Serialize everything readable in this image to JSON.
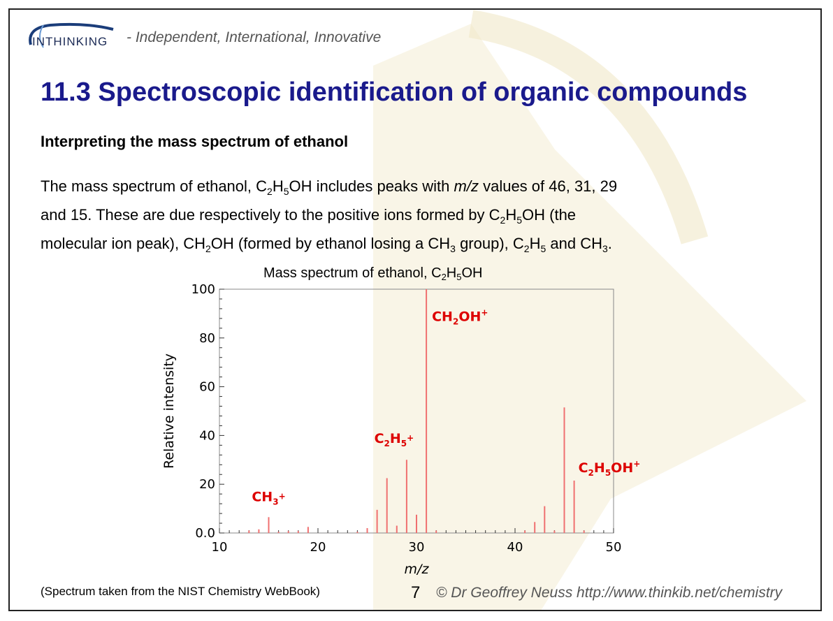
{
  "header": {
    "logo_text": "INTHINKING",
    "tagline": "- Independent, International, Innovative"
  },
  "title": "11.3 Spectroscopic identification of organic compounds",
  "subtitle": "Interpreting the mass spectrum of ethanol",
  "paragraph": {
    "line1": [
      "The mass spectrum of ethanol, C",
      "2",
      "H",
      "5",
      "OH includes peaks with ",
      "m/z",
      " values of 46, 31, 29"
    ],
    "line2": [
      "and 15. These are due respectively to the positive ions formed by C",
      "2",
      "H",
      "5",
      "OH (the"
    ],
    "line3": [
      "molecular ion peak), CH",
      "2",
      "OH (formed by ethanol losing a CH",
      "3",
      " group), C",
      "2",
      "H",
      "5",
      " and CH",
      "3",
      "."
    ]
  },
  "chart_title": [
    "Mass spectrum of ethanol, C",
    "2",
    "H",
    "5",
    "OH"
  ],
  "footer": {
    "source": "(Spectrum taken from the NIST Chemistry WebBook)",
    "page": "7",
    "credit": "© Dr Geoffrey Neuss http://www.thinkib.net/chemistry"
  },
  "colors": {
    "title": "#1a1a8c",
    "peak": "#f07070",
    "annotation": "#dd0000",
    "watermark": "#f7f2df"
  },
  "chart_data": {
    "type": "bar",
    "title": "Mass spectrum of ethanol, C2H5OH",
    "xlabel": "m/z",
    "ylabel": "Relative intensity",
    "xlim": [
      10,
      50
    ],
    "ylim": [
      0,
      100
    ],
    "x_ticks": [
      "10",
      "20",
      "30",
      "40",
      "50"
    ],
    "y_ticks": [
      "0.0",
      "20",
      "40",
      "60",
      "80",
      "100"
    ],
    "peaks": [
      {
        "mz": 13,
        "intensity": 1
      },
      {
        "mz": 14,
        "intensity": 1.5
      },
      {
        "mz": 15,
        "intensity": 6.5
      },
      {
        "mz": 16,
        "intensity": 0.5
      },
      {
        "mz": 17,
        "intensity": 0.8
      },
      {
        "mz": 18,
        "intensity": 0.8
      },
      {
        "mz": 19,
        "intensity": 2.5
      },
      {
        "mz": 24,
        "intensity": 0.5
      },
      {
        "mz": 25,
        "intensity": 2
      },
      {
        "mz": 26,
        "intensity": 9.5
      },
      {
        "mz": 27,
        "intensity": 22.5
      },
      {
        "mz": 28,
        "intensity": 3
      },
      {
        "mz": 29,
        "intensity": 30
      },
      {
        "mz": 30,
        "intensity": 7.5
      },
      {
        "mz": 31,
        "intensity": 100
      },
      {
        "mz": 32,
        "intensity": 1
      },
      {
        "mz": 41,
        "intensity": 1
      },
      {
        "mz": 42,
        "intensity": 4.5
      },
      {
        "mz": 43,
        "intensity": 11
      },
      {
        "mz": 44,
        "intensity": 1
      },
      {
        "mz": 45,
        "intensity": 51.5
      },
      {
        "mz": 46,
        "intensity": 21.5
      },
      {
        "mz": 47,
        "intensity": 1
      }
    ],
    "annotations": [
      {
        "label_parts": [
          "CH",
          "3",
          "+"
        ],
        "mz": 15,
        "anchor_y": 13
      },
      {
        "label_parts": [
          "C",
          "2",
          "H",
          "5",
          "+"
        ],
        "mz": 29,
        "anchor_y": 37
      },
      {
        "label_parts": [
          "CH",
          "2",
          "OH",
          "+"
        ],
        "mz": 31,
        "anchor_y": 87
      },
      {
        "label_parts": [
          "C",
          "2",
          "H",
          "5",
          "OH",
          "+"
        ],
        "mz": 46,
        "anchor_y": 25
      }
    ]
  }
}
